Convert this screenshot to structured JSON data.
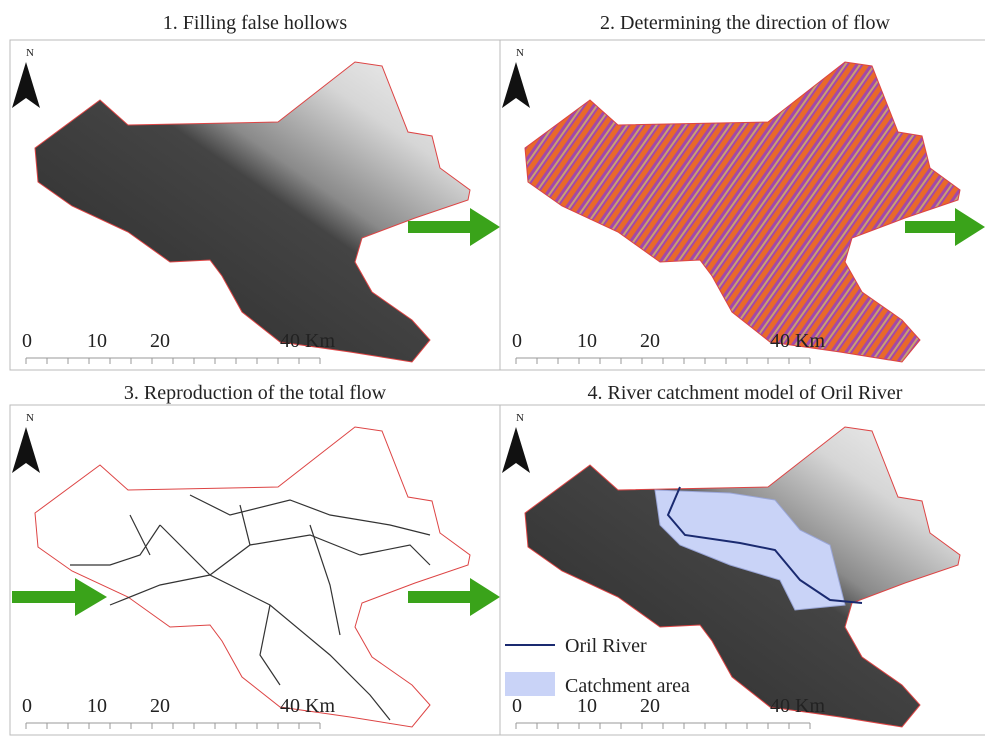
{
  "panels": [
    {
      "title": "1. Filling false hollows",
      "north": "N",
      "scale": [
        "0",
        "10",
        "20",
        "40 Km"
      ]
    },
    {
      "title": "2. Determining the direction of flow",
      "north": "N",
      "scale": [
        "0",
        "10",
        "20",
        "40 Km"
      ]
    },
    {
      "title": "3. Reproduction of the total flow",
      "north": "N",
      "scale": [
        "0",
        "10",
        "20",
        "40 Km"
      ]
    },
    {
      "title": "4. River catchment model of Oril River",
      "north": "N",
      "scale": [
        "0",
        "10",
        "20",
        "40 Km"
      ]
    }
  ],
  "legend": {
    "items": [
      "Oril River",
      "Catchment area"
    ]
  }
}
